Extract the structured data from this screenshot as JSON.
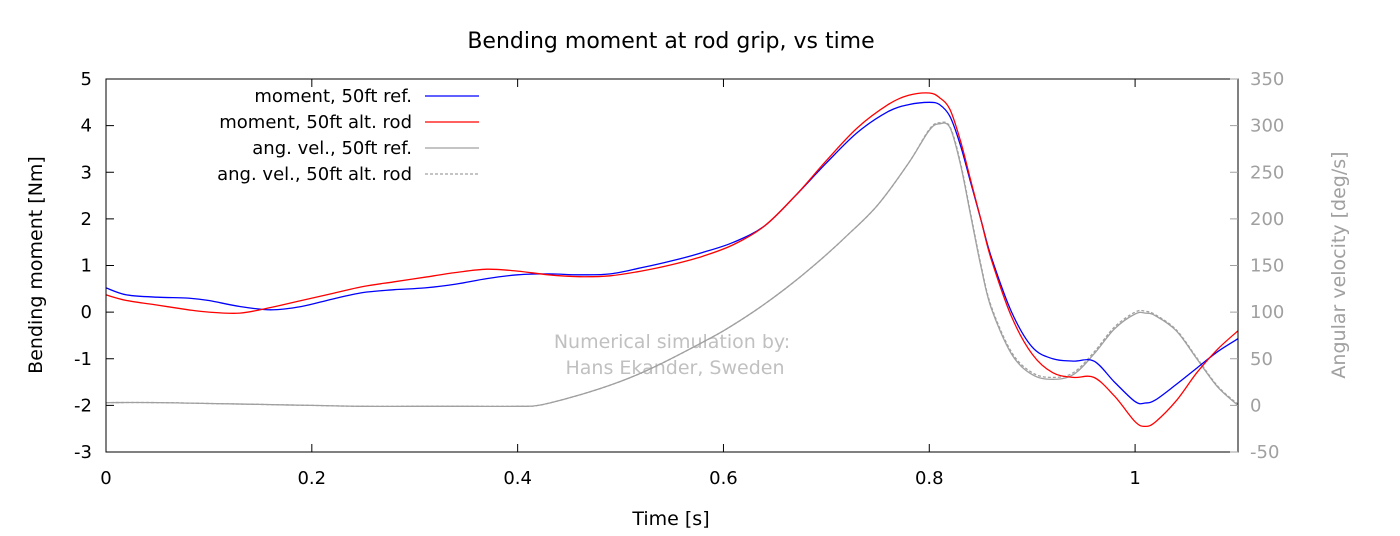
{
  "chart_data": {
    "type": "line",
    "title": "Bending moment at rod grip, vs time",
    "xlabel": "Time [s]",
    "ylabel": "Bending moment [Nm]",
    "y2label": "Angular velocity [deg/s]",
    "xlim": [
      0,
      1.1
    ],
    "ylim": [
      -3,
      5
    ],
    "y2lim": [
      -50,
      350
    ],
    "xticks": [
      0,
      0.2,
      0.4,
      0.6,
      0.8,
      1
    ],
    "xtick_labels": [
      "0",
      "0.2",
      "0.4",
      "0.6",
      "0.8",
      "1"
    ],
    "yticks": [
      -3,
      -2,
      -1,
      0,
      1,
      2,
      3,
      4,
      5
    ],
    "ytick_labels": [
      "-3",
      "-2",
      "-1",
      "0",
      "1",
      "2",
      "3",
      "4",
      "5"
    ],
    "y2ticks": [
      -50,
      0,
      50,
      100,
      150,
      200,
      250,
      300,
      350
    ],
    "y2tick_labels": [
      "-50",
      "0",
      "50",
      "100",
      "150",
      "200",
      "250",
      "300",
      "350"
    ],
    "grid": false,
    "legend_position": "top-left",
    "annotation": [
      "Numerical simulation by:",
      "Hans Ekander, Sweden"
    ],
    "colors": {
      "moment_ref": "#0000ff",
      "moment_alt": "#ff0000",
      "angvel": "#a0a0a0",
      "right_axis": "#a0a0a0",
      "watermark": "#c0c0c0"
    },
    "series": [
      {
        "name": "moment, 50ft ref.",
        "axis": "left",
        "style": "solid",
        "x": [
          0,
          0.02,
          0.05,
          0.08,
          0.1,
          0.13,
          0.16,
          0.19,
          0.22,
          0.25,
          0.28,
          0.31,
          0.34,
          0.37,
          0.4,
          0.43,
          0.46,
          0.49,
          0.52,
          0.55,
          0.58,
          0.61,
          0.64,
          0.67,
          0.7,
          0.73,
          0.76,
          0.78,
          0.8,
          0.81,
          0.82,
          0.83,
          0.84,
          0.85,
          0.86,
          0.88,
          0.9,
          0.92,
          0.94,
          0.96,
          0.98,
          1.0,
          1.01,
          1.02,
          1.04,
          1.06,
          1.08,
          1.1
        ],
        "y": [
          0.52,
          0.37,
          0.32,
          0.3,
          0.25,
          0.12,
          0.05,
          0.12,
          0.28,
          0.42,
          0.48,
          0.52,
          0.6,
          0.72,
          0.8,
          0.82,
          0.8,
          0.82,
          0.95,
          1.1,
          1.28,
          1.5,
          1.85,
          2.5,
          3.2,
          3.85,
          4.3,
          4.45,
          4.5,
          4.45,
          4.2,
          3.6,
          2.8,
          2.0,
          1.2,
          0.0,
          -0.75,
          -1.0,
          -1.05,
          -1.05,
          -1.5,
          -1.92,
          -1.95,
          -1.88,
          -1.55,
          -1.2,
          -0.85,
          -0.57
        ]
      },
      {
        "name": "moment, 50ft alt. rod",
        "axis": "left",
        "style": "solid",
        "x": [
          0,
          0.02,
          0.05,
          0.08,
          0.1,
          0.13,
          0.16,
          0.19,
          0.22,
          0.25,
          0.28,
          0.31,
          0.34,
          0.37,
          0.4,
          0.43,
          0.46,
          0.49,
          0.52,
          0.55,
          0.58,
          0.61,
          0.64,
          0.67,
          0.7,
          0.73,
          0.76,
          0.78,
          0.8,
          0.81,
          0.82,
          0.83,
          0.84,
          0.85,
          0.86,
          0.88,
          0.9,
          0.92,
          0.94,
          0.96,
          0.98,
          1.0,
          1.01,
          1.02,
          1.04,
          1.06,
          1.08,
          1.1
        ],
        "y": [
          0.37,
          0.25,
          0.15,
          0.05,
          0.0,
          -0.02,
          0.1,
          0.25,
          0.4,
          0.55,
          0.65,
          0.75,
          0.85,
          0.92,
          0.88,
          0.8,
          0.76,
          0.78,
          0.88,
          1.02,
          1.2,
          1.45,
          1.85,
          2.5,
          3.25,
          3.95,
          4.45,
          4.65,
          4.7,
          4.6,
          4.35,
          3.7,
          2.85,
          2.0,
          1.15,
          -0.1,
          -0.9,
          -1.3,
          -1.4,
          -1.4,
          -1.8,
          -2.35,
          -2.45,
          -2.35,
          -1.9,
          -1.3,
          -0.8,
          -0.4
        ]
      },
      {
        "name": "ang. vel., 50ft ref.",
        "axis": "right",
        "style": "solid",
        "x": [
          0,
          0.05,
          0.1,
          0.15,
          0.2,
          0.25,
          0.3,
          0.35,
          0.4,
          0.42,
          0.45,
          0.48,
          0.51,
          0.54,
          0.57,
          0.6,
          0.63,
          0.66,
          0.69,
          0.72,
          0.75,
          0.78,
          0.8,
          0.81,
          0.82,
          0.83,
          0.84,
          0.85,
          0.86,
          0.88,
          0.9,
          0.92,
          0.94,
          0.96,
          0.98,
          1.0,
          1.01,
          1.02,
          1.04,
          1.06,
          1.08,
          1.1
        ],
        "y": [
          3,
          3,
          2,
          1,
          0,
          -1,
          -1,
          -1,
          -1,
          0,
          8,
          18,
          30,
          45,
          62,
          80,
          101,
          125,
          152,
          182,
          215,
          260,
          295,
          302,
          298,
          260,
          205,
          150,
          105,
          55,
          33,
          28,
          33,
          55,
          82,
          98,
          99,
          96,
          80,
          50,
          20,
          0
        ]
      },
      {
        "name": "ang. vel., 50ft alt. rod",
        "axis": "right",
        "style": "dashed",
        "x": [
          0,
          0.05,
          0.1,
          0.15,
          0.2,
          0.25,
          0.3,
          0.35,
          0.4,
          0.42,
          0.45,
          0.48,
          0.51,
          0.54,
          0.57,
          0.6,
          0.63,
          0.66,
          0.69,
          0.72,
          0.75,
          0.78,
          0.8,
          0.81,
          0.82,
          0.83,
          0.84,
          0.85,
          0.86,
          0.88,
          0.9,
          0.92,
          0.94,
          0.96,
          0.98,
          1.0,
          1.01,
          1.02,
          1.04,
          1.06,
          1.08,
          1.1
        ],
        "y": [
          3,
          3,
          2,
          1,
          0,
          -1,
          -1,
          -1,
          -1,
          0,
          8,
          18,
          30,
          45,
          62,
          80,
          101,
          125,
          152,
          182,
          215,
          260,
          296,
          303,
          299,
          262,
          207,
          152,
          107,
          57,
          35,
          30,
          35,
          57,
          84,
          100,
          101,
          97,
          81,
          51,
          21,
          1
        ]
      }
    ]
  }
}
